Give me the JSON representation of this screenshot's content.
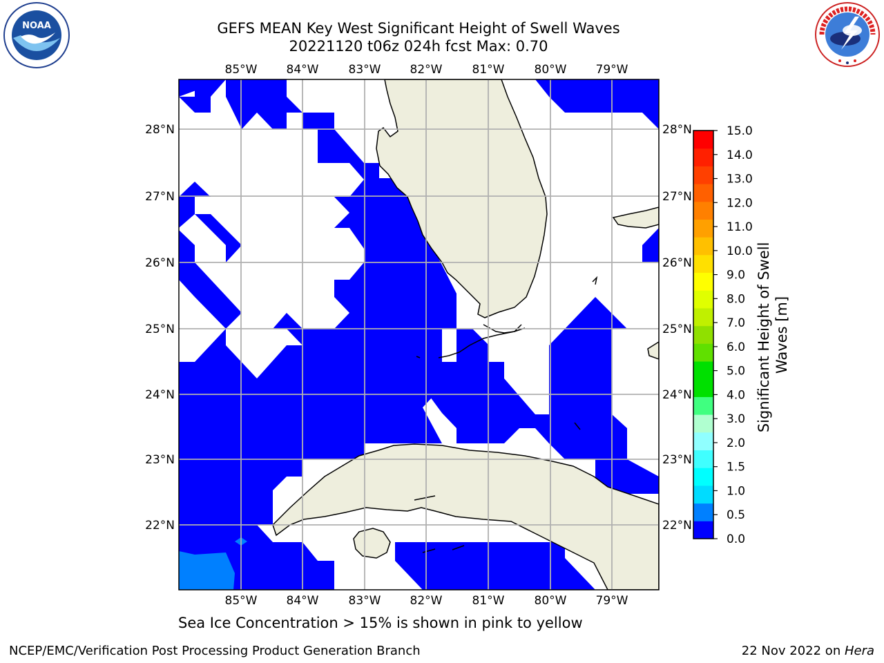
{
  "title": {
    "line1": "GEFS MEAN Key West Significant Height of Swell Waves",
    "line2": "20221120 t06z 024h fcst   Max: 0.70"
  },
  "logos": {
    "left": {
      "icon": "noaa-logo",
      "text": "NOAA"
    },
    "right": {
      "icon": "nws-logo",
      "text": "NATIONAL WEATHER SERVICE"
    }
  },
  "map": {
    "lon_range": [
      -86,
      -78.3
    ],
    "lat_range": [
      21.05,
      28.78
    ],
    "lon_ticks": [
      "85°W",
      "84°W",
      "83°W",
      "82°W",
      "81°W",
      "80°W",
      "79°W"
    ],
    "lat_ticks": [
      "28°N",
      "27°N",
      "26°N",
      "25°N",
      "24°N",
      "23°N",
      "22°N"
    ],
    "grid": true,
    "land_color": "#eeeedd",
    "swell_color": "#0000ff",
    "swell_secondary_color": "#0080ff"
  },
  "colorbar": {
    "label": "Significant Height of Swell Waves [m]",
    "ticks": [
      "15.0",
      "14.0",
      "13.0",
      "12.0",
      "11.0",
      "10.0",
      "9.0",
      "8.0",
      "7.0",
      "6.0",
      "5.0",
      "4.0",
      "3.0",
      "2.0",
      "1.5",
      "1.0",
      "0.5",
      "0.0"
    ],
    "colors_bottom_to_top": [
      "#0000ff",
      "#0080ff",
      "#00dcff",
      "#00ffff",
      "#40ffff",
      "#90ffff",
      "#b0ffd0",
      "#40ff80",
      "#00e000",
      "#00e000",
      "#60e000",
      "#90e000",
      "#c0f000",
      "#e0ff00",
      "#ffff00",
      "#ffe000",
      "#ffc000",
      "#ffa000",
      "#ff8000",
      "#ff6000",
      "#ff4000",
      "#ff2000",
      "#ff0000"
    ]
  },
  "footer": {
    "note": "Sea Ice Concentration > 15% is shown in pink to yellow",
    "left": "NCEP/EMC/Verification Post Processing Product Generation Branch",
    "right_prefix": "22 Nov 2022 on ",
    "right_host": "Hera"
  }
}
